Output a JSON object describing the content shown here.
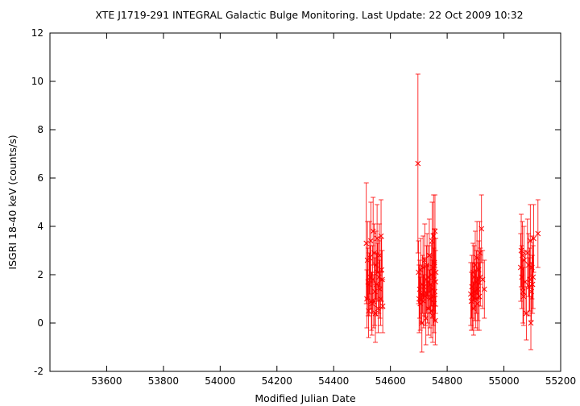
{
  "chart_data": {
    "type": "scatter",
    "title": "XTE J1719-291   INTEGRAL Galactic Bulge Monitoring.  Last Update: 22 Oct 2009 10:32",
    "xlabel": "Modified Julian Date",
    "ylabel": "ISGRI 18-40 keV (counts/s)",
    "xlim": [
      53400,
      55200
    ],
    "ylim": [
      -2,
      12
    ],
    "xticks": [
      53600,
      53800,
      54000,
      54200,
      54400,
      54600,
      54800,
      55000,
      55200
    ],
    "yticks": [
      -2,
      0,
      2,
      4,
      6,
      8,
      10,
      12
    ],
    "grid": false,
    "marker": "x",
    "color": "#ff0000",
    "series": [
      {
        "points": [
          [
            54515,
            3.3,
            2.5
          ],
          [
            54517,
            1.0,
            1.2
          ],
          [
            54519,
            2.6,
            1.6
          ],
          [
            54521,
            1.7,
            1.4
          ],
          [
            54523,
            0.5,
            1.1
          ],
          [
            54525,
            1.6,
            1.3
          ],
          [
            54527,
            2.7,
            1.5
          ],
          [
            54529,
            1.9,
            1.3
          ],
          [
            54531,
            3.4,
            1.6
          ],
          [
            54533,
            0.9,
            1.2
          ],
          [
            54535,
            0.8,
            1.3
          ],
          [
            54537,
            1.8,
            1.4
          ],
          [
            54539,
            3.8,
            1.4
          ],
          [
            54541,
            0.9,
            1.1
          ],
          [
            54543,
            2.9,
            1.2
          ],
          [
            54545,
            1.3,
            1.4
          ],
          [
            54547,
            0.4,
            1.2
          ],
          [
            54549,
            2.4,
            1.4
          ],
          [
            54551,
            1.6,
            1.3
          ],
          [
            54553,
            3.5,
            1.4
          ],
          [
            54555,
            2.1,
            1.2
          ],
          [
            54557,
            0.6,
            1.0
          ],
          [
            54559,
            1.9,
            1.5
          ],
          [
            54561,
            2.8,
            1.3
          ],
          [
            54563,
            1.4,
            1.2
          ],
          [
            54565,
            1.0,
            1.1
          ],
          [
            54567,
            3.6,
            1.5
          ],
          [
            54569,
            2.2,
            1.3
          ],
          [
            54571,
            1.8,
            1.2
          ],
          [
            54573,
            0.7,
            1.1
          ],
          [
            54697,
            6.6,
            3.7
          ],
          [
            54699,
            2.1,
            1.3
          ],
          [
            54701,
            1.0,
            1.4
          ],
          [
            54703,
            1.4,
            1.2
          ],
          [
            54705,
            0.8,
            1.1
          ],
          [
            54707,
            2.2,
            1.3
          ],
          [
            54709,
            1.2,
            1.2
          ],
          [
            54711,
            0.0,
            1.2
          ],
          [
            54713,
            1.6,
            1.2
          ],
          [
            54715,
            2.3,
            1.3
          ],
          [
            54717,
            0.9,
            1.1
          ],
          [
            54719,
            1.5,
            1.2
          ],
          [
            54721,
            2.6,
            1.5
          ],
          [
            54723,
            1.1,
            1.2
          ],
          [
            54725,
            0.2,
            1.1
          ],
          [
            54727,
            1.8,
            1.4
          ],
          [
            54729,
            2.4,
            1.3
          ],
          [
            54731,
            1.2,
            1.2
          ],
          [
            54733,
            0.6,
            1.1
          ],
          [
            54735,
            1.9,
            1.3
          ],
          [
            54737,
            2.8,
            1.5
          ],
          [
            54739,
            1.0,
            1.2
          ],
          [
            54741,
            1.6,
            1.2
          ],
          [
            54743,
            0.5,
            1.1
          ],
          [
            54745,
            2.0,
            1.3
          ],
          [
            54747,
            3.4,
            1.6
          ],
          [
            54748,
            1.4,
            1.2
          ],
          [
            54749,
            0.3,
            1.1
          ],
          [
            54750,
            2.3,
            1.4
          ],
          [
            54751,
            1.1,
            1.2
          ],
          [
            54752,
            3.6,
            1.7
          ],
          [
            54753,
            1.8,
            1.3
          ],
          [
            54754,
            0.8,
            1.2
          ],
          [
            54755,
            2.5,
            1.4
          ],
          [
            54756,
            1.3,
            1.2
          ],
          [
            54757,
            3.8,
            1.5
          ],
          [
            54758,
            0.1,
            1.0
          ],
          [
            54759,
            1.7,
            1.3
          ],
          [
            54760,
            2.1,
            1.4
          ],
          [
            54883,
            1.2,
            1.3
          ],
          [
            54885,
            0.9,
            1.2
          ],
          [
            54887,
            1.5,
            1.3
          ],
          [
            54889,
            1.1,
            1.4
          ],
          [
            54891,
            2.1,
            1.2
          ],
          [
            54893,
            0.6,
            1.1
          ],
          [
            54895,
            1.9,
            1.3
          ],
          [
            54897,
            1.3,
            1.2
          ],
          [
            54899,
            2.4,
            1.4
          ],
          [
            54901,
            1.0,
            1.2
          ],
          [
            54903,
            1.7,
            1.3
          ],
          [
            54905,
            2.7,
            1.5
          ],
          [
            54907,
            0.8,
            1.1
          ],
          [
            54909,
            1.4,
            1.3
          ],
          [
            54911,
            2.2,
            1.2
          ],
          [
            54913,
            1.1,
            1.4
          ],
          [
            54915,
            2.9,
            1.3
          ],
          [
            54917,
            1.9,
            1.2
          ],
          [
            54921,
            3.9,
            1.4
          ],
          [
            54925,
            1.8,
            1.2
          ],
          [
            54931,
            1.4,
            1.2
          ],
          [
            55059,
            2.3,
            1.4
          ],
          [
            55061,
            3.0,
            1.5
          ],
          [
            55063,
            1.9,
            1.3
          ],
          [
            55065,
            2.8,
            1.4
          ],
          [
            55067,
            1.3,
            1.3
          ],
          [
            55069,
            1.1,
            1.2
          ],
          [
            55071,
            2.6,
            1.4
          ],
          [
            55075,
            1.7,
            1.3
          ],
          [
            55079,
            0.4,
            1.1
          ],
          [
            55083,
            2.9,
            1.4
          ],
          [
            55087,
            2.4,
            1.3
          ],
          [
            55089,
            1.5,
            1.2
          ],
          [
            55091,
            1.8,
            1.3
          ],
          [
            55093,
            3.4,
            1.5
          ],
          [
            55095,
            0.0,
            1.1
          ],
          [
            55097,
            1.3,
            1.2
          ],
          [
            55099,
            2.3,
            1.3
          ],
          [
            55101,
            1.6,
            1.2
          ],
          [
            55103,
            1.9,
            1.3
          ],
          [
            55105,
            3.5,
            1.4
          ],
          [
            55120,
            3.7,
            1.4
          ]
        ]
      }
    ]
  }
}
